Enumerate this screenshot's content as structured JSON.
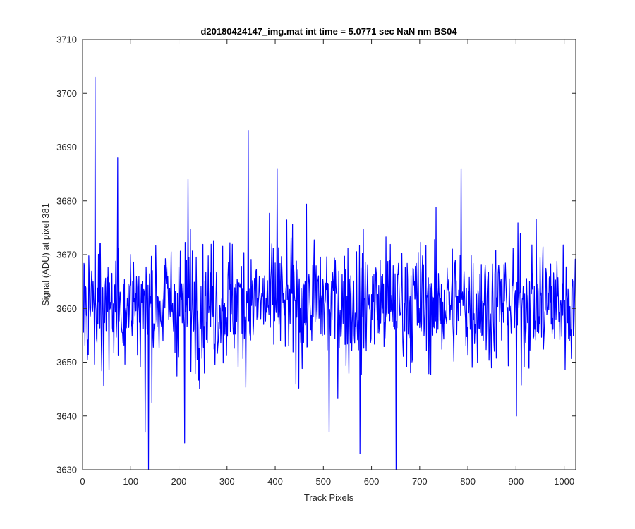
{
  "chart_data": {
    "type": "line",
    "title": "d20180424147_img.mat int time = 5.0771 sec  NaN nm BS04",
    "xlabel": "Track Pixels",
    "ylabel": "Signal (ADU) at pixel 381",
    "xlim": [
      0,
      1024
    ],
    "ylim": [
      3630,
      3710
    ],
    "xticks": [
      0,
      100,
      200,
      300,
      400,
      500,
      600,
      700,
      800,
      900,
      1000
    ],
    "yticks": [
      3630,
      3640,
      3650,
      3660,
      3670,
      3680,
      3690,
      3700,
      3710
    ],
    "grid": false,
    "colors": {
      "line": "#0000ff",
      "axes": "#262626"
    },
    "series": [
      {
        "n_points": 1024,
        "x_start": 1,
        "baseline_y": 3661,
        "noise_range": [
          3646,
          3676
        ],
        "notable_points": [
          {
            "x": 26,
            "y": 3703
          },
          {
            "x": 73,
            "y": 3688
          },
          {
            "x": 130,
            "y": 3637
          },
          {
            "x": 137,
            "y": 3630
          },
          {
            "x": 212,
            "y": 3635
          },
          {
            "x": 219,
            "y": 3684
          },
          {
            "x": 344,
            "y": 3693
          },
          {
            "x": 404,
            "y": 3686
          },
          {
            "x": 512,
            "y": 3637
          },
          {
            "x": 576,
            "y": 3633
          },
          {
            "x": 651,
            "y": 3630
          },
          {
            "x": 786,
            "y": 3686
          },
          {
            "x": 901,
            "y": 3640
          }
        ]
      }
    ]
  }
}
